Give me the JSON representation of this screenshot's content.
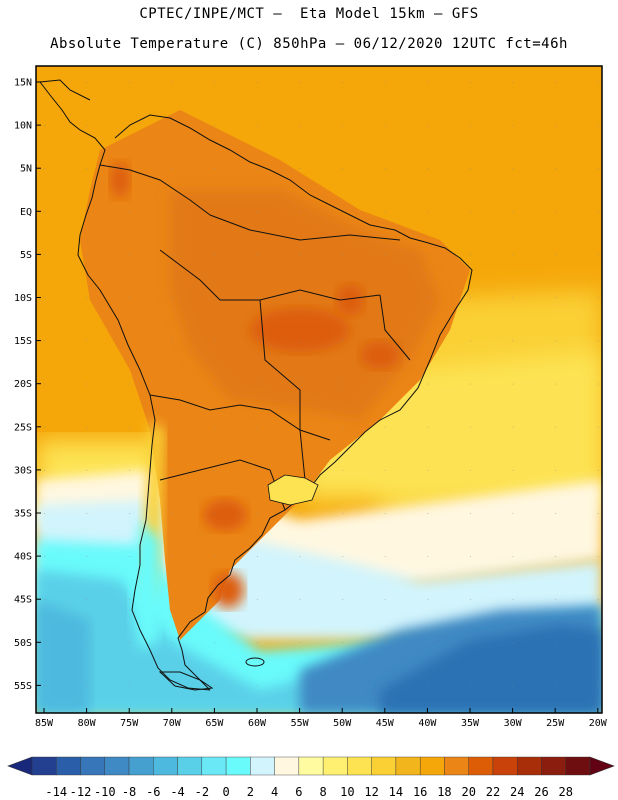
{
  "header": {
    "line1": "CPTEC/INPE/MCT –  Eta Model 15km – GFS",
    "line2": "Absolute Temperature (C) 850hPa – 06/12/2020 12UTC fct=46h"
  },
  "map": {
    "lat_labels": [
      "15N",
      "10N",
      "5N",
      "EQ",
      "5S",
      "10S",
      "15S",
      "20S",
      "25S",
      "30S",
      "35S",
      "40S",
      "45S",
      "50S",
      "55S"
    ],
    "lon_labels": [
      "85W",
      "80W",
      "75W",
      "70W",
      "65W",
      "60W",
      "55W",
      "50W",
      "45W",
      "40W",
      "35W",
      "30W",
      "25W",
      "20W"
    ],
    "region": "South America",
    "colors": {
      "ocean_tropical": "#f5a70a",
      "land_warm": "#e68a16",
      "hot_core": "#d4660c",
      "cold_ocean": "#2b72b3",
      "coastline": "#111111"
    }
  },
  "colorbar": {
    "ticks": [
      "-14",
      "-12",
      "-10",
      "-8",
      "-6",
      "-4",
      "-2",
      "0",
      "2",
      "4",
      "6",
      "8",
      "10",
      "12",
      "14",
      "16",
      "18",
      "20",
      "22",
      "24",
      "26",
      "28"
    ],
    "colors": [
      "#233f8f",
      "#2b5ea8",
      "#3776b8",
      "#3f89c4",
      "#45a0d0",
      "#4db9de",
      "#5ad0e8",
      "#6ae8f5",
      "#69fafb",
      "#d2f4fc",
      "#fff7e0",
      "#fffba0",
      "#fff072",
      "#fde352",
      "#fad034",
      "#f2b51c",
      "#f5a70a",
      "#eb8516",
      "#dd5d07",
      "#c8420a",
      "#a82e0a",
      "#8a1d0d",
      "#6e0e10"
    ],
    "left_end_color": "#18287a",
    "right_end_color": "#620014"
  }
}
